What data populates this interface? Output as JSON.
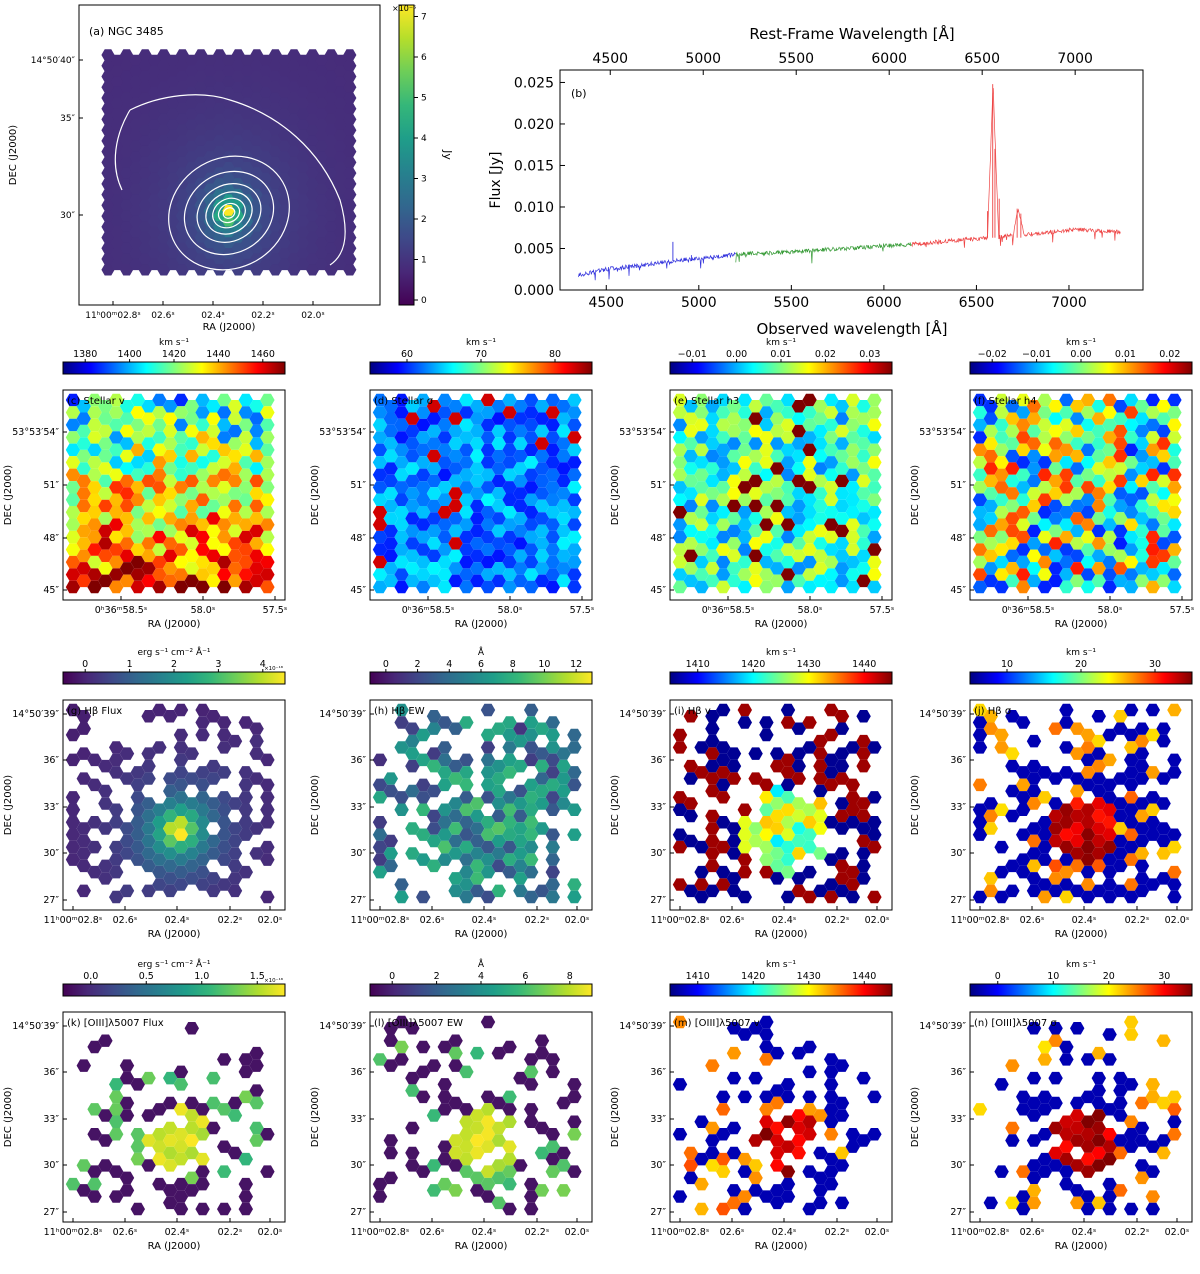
{
  "colors": {
    "viridis": [
      "#440154",
      "#482878",
      "#3e4989",
      "#31688e",
      "#26828e",
      "#1f9e89",
      "#35b779",
      "#6ece58",
      "#b5de2b",
      "#fde725"
    ],
    "jet": [
      "#00007f",
      "#0000ff",
      "#007fff",
      "#00ffff",
      "#7fff7f",
      "#ffff00",
      "#ff7f00",
      "#ff0000",
      "#7f0000"
    ],
    "spectrum_blue": "#3333dd",
    "spectrum_green": "#339933",
    "spectrum_red": "#ee4444"
  },
  "panel_a": {
    "label": "(a) NGC 3485",
    "colorbar_unit": "Jy",
    "colorbar_multiplier": "×10⁻⁵",
    "colorbar_ticks": [
      "0",
      "1",
      "2",
      "3",
      "4",
      "5",
      "6",
      "7"
    ],
    "ra_ticks": [
      "11ʰ00ᵐ02.8ˢ",
      "02.6ˢ",
      "02.4ˢ",
      "02.2ˢ",
      "02.0ˢ"
    ],
    "dec_ticks": [
      "14°50′40″",
      "35″",
      "30″"
    ],
    "xlabel": "RA (J2000)",
    "ylabel": "DEC (J2000)"
  },
  "panel_b": {
    "label": "(b)",
    "xlabel": "Observed wavelength [Å]",
    "top_xlabel": "Rest-Frame Wavelength [Å]",
    "ylabel": "Flux [Jy]"
  },
  "chart_data": {
    "type": "line",
    "x_bottom_ticks": [
      "4500",
      "5000",
      "5500",
      "6000",
      "6500",
      "7000"
    ],
    "x_top_ticks": [
      "4500",
      "5000",
      "5500",
      "6000",
      "6500",
      "7000"
    ],
    "y_ticks": [
      "0.000",
      "0.005",
      "0.010",
      "0.015",
      "0.020",
      "0.025"
    ],
    "xlim": [
      4250,
      7400
    ],
    "ylim": [
      0.0,
      0.0265
    ],
    "series": [
      {
        "color": "blue",
        "x": [
          4350,
          4500,
          4700,
          4900,
          5100,
          5200
        ],
        "y": [
          0.0018,
          0.0025,
          0.003,
          0.0036,
          0.004,
          0.0043
        ]
      },
      {
        "color": "green",
        "x": [
          5200,
          5500,
          5800,
          6000,
          6150
        ],
        "y": [
          0.0043,
          0.0046,
          0.005,
          0.0053,
          0.0055
        ]
      },
      {
        "color": "red",
        "x": [
          6150,
          6400,
          6560,
          6590,
          6620,
          6700,
          6725,
          6760,
          6900,
          7050,
          7280
        ],
        "y": [
          0.0055,
          0.006,
          0.0063,
          0.0248,
          0.0064,
          0.0066,
          0.0098,
          0.0066,
          0.007,
          0.0073,
          0.007
        ]
      }
    ]
  },
  "stellar_row": {
    "ra_ticks": [
      "0ʰ36ᵐ58.5ˢ",
      "58.0ˢ",
      "57.5ˢ"
    ],
    "dec_ticks": [
      "53°53′54″",
      "51″",
      "48″",
      "45″"
    ],
    "xlabel": "RA (J2000)",
    "ylabel": "DEC (J2000)",
    "panels": [
      {
        "label": "(c) Stellar v",
        "unit": "km s⁻¹",
        "cmap": "jet",
        "ticks": [
          "1380",
          "1400",
          "1420",
          "1440",
          "1460"
        ]
      },
      {
        "label": "(d) Stellar σ",
        "unit": "km s⁻¹",
        "cmap": "jet",
        "ticks": [
          "60",
          "70",
          "80"
        ]
      },
      {
        "label": "(e) Stellar h3",
        "unit": "km s⁻¹",
        "cmap": "jet",
        "ticks": [
          "−0.01",
          "0.00",
          "0.01",
          "0.02",
          "0.03"
        ]
      },
      {
        "label": "(f) Stellar h4",
        "unit": "km s⁻¹",
        "cmap": "jet",
        "ticks": [
          "−0.02",
          "−0.01",
          "0.00",
          "0.01",
          "0.02"
        ]
      }
    ]
  },
  "gas_rows": {
    "ra_ticks": [
      "11ʰ00ᵐ02.8ˢ",
      "02.6ˢ",
      "02.4ˢ",
      "02.2ˢ",
      "02.0ˢ"
    ],
    "dec_ticks": [
      "14°50′39″",
      "36″",
      "33″",
      "30″",
      "27″"
    ],
    "xlabel": "RA (J2000)",
    "ylabel": "DEC (J2000)",
    "hbeta": [
      {
        "label": "(g) Hβ Flux",
        "unit": "erg s⁻¹ cm⁻² Å⁻¹",
        "multiplier": "×10⁻¹⁸",
        "cmap": "viridis",
        "ticks": [
          "0",
          "1",
          "2",
          "3",
          "4"
        ]
      },
      {
        "label": "(h) Hβ EW",
        "unit": "Å",
        "cmap": "viridis",
        "ticks": [
          "0",
          "2",
          "4",
          "6",
          "8",
          "10",
          "12"
        ]
      },
      {
        "label": "(i) Hβ v",
        "unit": "km s⁻¹",
        "cmap": "jet",
        "ticks": [
          "1410",
          "1420",
          "1430",
          "1440"
        ]
      },
      {
        "label": "(j) Hβ σ",
        "unit": "km s⁻¹",
        "cmap": "jet",
        "ticks": [
          "10",
          "20",
          "30"
        ]
      }
    ],
    "oiii": [
      {
        "label": "(k) [OIII]λ5007 Flux",
        "unit": "erg s⁻¹ cm⁻² Å⁻¹",
        "multiplier": "×10⁻¹⁸",
        "cmap": "viridis",
        "ticks": [
          "0.0",
          "0.5",
          "1.0",
          "1.5"
        ]
      },
      {
        "label": "(l) [OIII]λ5007 EW",
        "unit": "Å",
        "cmap": "viridis",
        "ticks": [
          "0",
          "2",
          "4",
          "6",
          "8"
        ]
      },
      {
        "label": "(m) [OIII]λ5007 v",
        "unit": "km s⁻¹",
        "cmap": "jet",
        "ticks": [
          "1410",
          "1420",
          "1430",
          "1440"
        ]
      },
      {
        "label": "(n) [OIII]λ5007 σ",
        "unit": "km s⁻¹",
        "cmap": "jet",
        "ticks": [
          "0",
          "10",
          "20",
          "30"
        ]
      }
    ]
  }
}
